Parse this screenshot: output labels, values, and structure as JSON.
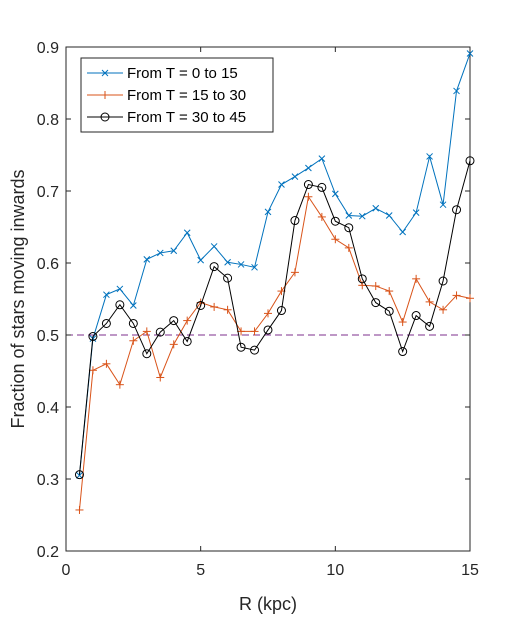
{
  "chart_data": {
    "type": "line",
    "xlabel": "R (kpc)",
    "ylabel": "Fraction of stars moving inwards",
    "xlim": [
      0,
      15
    ],
    "ylim": [
      0.2,
      0.9
    ],
    "xticks": [
      0,
      5,
      10,
      15
    ],
    "yticks": [
      0.2,
      0.3,
      0.4,
      0.5,
      0.6,
      0.7,
      0.8,
      0.9
    ],
    "xtick_labels": [
      "0",
      "5",
      "10",
      "15"
    ],
    "ytick_labels": [
      "0.2",
      "0.3",
      "0.4",
      "0.5",
      "0.6",
      "0.7",
      "0.8",
      "0.9"
    ],
    "grid": false,
    "legend_position": "top-left",
    "reference_line": {
      "y": 0.5,
      "style": "dashed",
      "color": "#7E2F8E"
    },
    "x": [
      0.5,
      1.0,
      1.5,
      2.0,
      2.5,
      3.0,
      3.5,
      4.0,
      4.5,
      5.0,
      5.5,
      6.0,
      6.5,
      7.0,
      7.5,
      8.0,
      8.5,
      9.0,
      9.5,
      10.0,
      10.5,
      11.0,
      11.5,
      12.0,
      12.5,
      13.0,
      13.5,
      14.0,
      14.5,
      15.0
    ],
    "series": [
      {
        "name": "From T = 0 to 15",
        "color": "#0072BD",
        "marker": "x",
        "values": [
          0.305,
          0.495,
          0.556,
          0.564,
          0.541,
          0.605,
          0.614,
          0.617,
          0.642,
          0.604,
          0.623,
          0.601,
          0.598,
          0.594,
          0.671,
          0.709,
          0.72,
          0.732,
          0.745,
          0.696,
          0.666,
          0.665,
          0.676,
          0.666,
          0.643,
          0.67,
          0.748,
          0.681,
          0.839,
          0.891
        ]
      },
      {
        "name": "From T = 15 to 30",
        "color": "#D95319",
        "marker": "+",
        "values": [
          0.257,
          0.451,
          0.46,
          0.431,
          0.492,
          0.505,
          0.441,
          0.487,
          0.52,
          0.545,
          0.539,
          0.535,
          0.505,
          0.505,
          0.53,
          0.561,
          0.587,
          0.692,
          0.664,
          0.633,
          0.621,
          0.569,
          0.568,
          0.561,
          0.518,
          0.578,
          0.546,
          0.535,
          0.555,
          0.551
        ]
      },
      {
        "name": "From T = 30 to 45",
        "color": "#000000",
        "marker": "o",
        "values": [
          0.306,
          0.498,
          0.516,
          0.542,
          0.516,
          0.474,
          0.504,
          0.52,
          0.491,
          0.541,
          0.595,
          0.579,
          0.483,
          0.479,
          0.507,
          0.534,
          0.659,
          0.709,
          0.705,
          0.658,
          0.649,
          0.578,
          0.545,
          0.533,
          0.477,
          0.527,
          0.512,
          0.575,
          0.674,
          0.742
        ]
      }
    ]
  }
}
